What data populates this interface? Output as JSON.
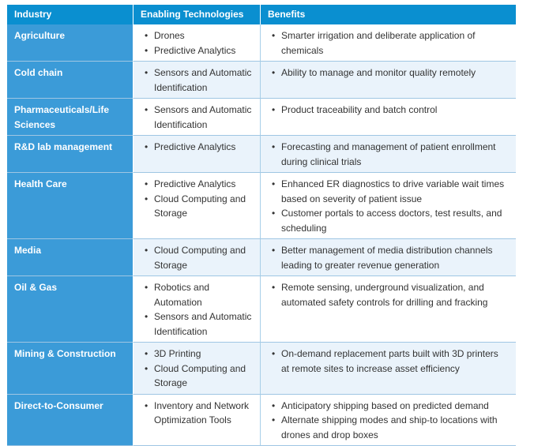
{
  "headers": [
    "Industry",
    "Enabling Technologies",
    "Benefits"
  ],
  "rows": [
    {
      "industry": "Agriculture",
      "technologies": [
        "Drones",
        "Predictive Analytics"
      ],
      "benefits": [
        "Smarter irrigation and deliberate application of chemicals"
      ]
    },
    {
      "industry": "Cold chain",
      "technologies": [
        "Sensors and Automatic Identification"
      ],
      "benefits": [
        "Ability to manage and monitor quality remotely"
      ]
    },
    {
      "industry": "Pharmaceuticals/Life Sciences",
      "technologies": [
        "Sensors and Automatic Identification"
      ],
      "benefits": [
        "Product traceability and batch control"
      ]
    },
    {
      "industry": "R&D lab management",
      "technologies": [
        "Predictive Analytics"
      ],
      "benefits": [
        "Forecasting and management of patient enrollment during clinical trials"
      ]
    },
    {
      "industry": "Health Care",
      "technologies": [
        "Predictive Analytics",
        "Cloud Computing and Storage"
      ],
      "benefits": [
        "Enhanced ER diagnostics to drive variable wait times based on severity of patient issue",
        "Customer portals to access doctors, test results, and scheduling"
      ]
    },
    {
      "industry": "Media",
      "technologies": [
        "Cloud Computing and Storage"
      ],
      "benefits": [
        "Better management of media distribution channels leading to greater revenue generation"
      ]
    },
    {
      "industry": "Oil & Gas",
      "technologies": [
        "Robotics and Automation",
        "Sensors and Automatic Identification"
      ],
      "benefits": [
        "Remote sensing, underground visualization, and automated safety controls for drilling and fracking"
      ]
    },
    {
      "industry": "Mining & Construction",
      "technologies": [
        "3D Printing",
        "Cloud Computing and Storage"
      ],
      "benefits": [
        "On-demand replacement parts built with 3D printers at remote sites to increase asset efficiency"
      ]
    },
    {
      "industry": "Direct-to-Consumer",
      "technologies": [
        "Inventory and Network Optimization Tools"
      ],
      "benefits": [
        "Anticipatory shipping based on predicted demand",
        "Alternate shipping modes and ship-to locations with drones and drop boxes"
      ]
    }
  ]
}
